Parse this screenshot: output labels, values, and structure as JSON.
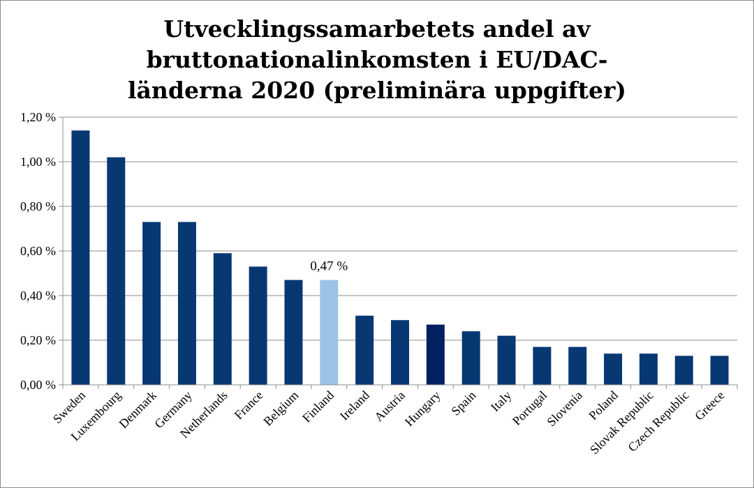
{
  "chart_data": {
    "type": "bar",
    "title_lines": [
      "Utvecklingssamarbetets andel av",
      "bruttonationalinkomsten i EU/DAC-",
      "länderna 2020 (preliminära uppgifter)"
    ],
    "xlabel": "",
    "ylabel": "",
    "ylim": [
      0,
      1.2
    ],
    "yticks": [
      "0,00 %",
      "0,20 %",
      "0,40 %",
      "0,60 %",
      "0,80 %",
      "1,00 %",
      "1,20 %"
    ],
    "ytick_values": [
      0,
      0.2,
      0.4,
      0.6,
      0.8,
      1.0,
      1.2
    ],
    "grid": true,
    "categories": [
      "Sweden",
      "Luxembourg",
      "Denmark",
      "Germany",
      "Netherlands",
      "France",
      "Belgium",
      "Finland",
      "Ireland",
      "Austria",
      "Hungary",
      "Spain",
      "Italy",
      "Portugal",
      "Slovenia",
      "Poland",
      "Slovak Republic",
      "Czech Republic",
      "Greece"
    ],
    "values": [
      1.14,
      1.02,
      0.73,
      0.73,
      0.59,
      0.53,
      0.47,
      0.47,
      0.31,
      0.29,
      0.27,
      0.24,
      0.22,
      0.17,
      0.17,
      0.14,
      0.14,
      0.13,
      0.13
    ],
    "colors": {
      "default": "#073872",
      "highlight": "#9dc3e6",
      "dark": "#002060",
      "grid": "#8c8c8c",
      "axis": "#8c8c8c"
    },
    "bar_color_keys": [
      "default",
      "default",
      "default",
      "default",
      "default",
      "default",
      "default",
      "highlight",
      "default",
      "default",
      "dark",
      "default",
      "default",
      "default",
      "default",
      "default",
      "default",
      "default",
      "default"
    ],
    "annotations": [
      {
        "category": "Finland",
        "text": "0,47 %"
      }
    ]
  }
}
